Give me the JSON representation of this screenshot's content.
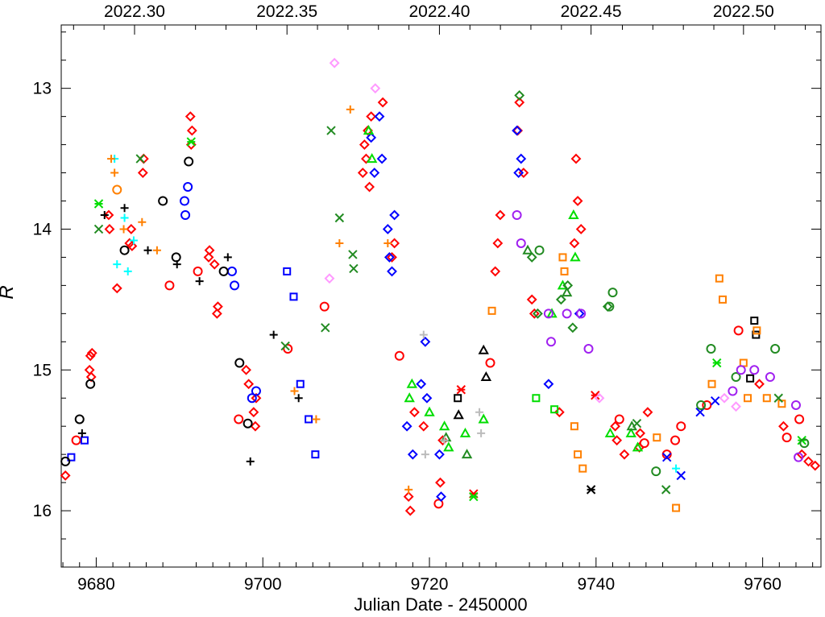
{
  "chart_data": {
    "type": "scatter",
    "xlabel": "Julian Date - 2450000",
    "ylabel": "R",
    "xlim": [
      9675.8,
      9767.0
    ],
    "ylim": [
      16.4,
      12.55
    ],
    "y_inverted": true,
    "x_ticks": [
      9680,
      9700,
      9720,
      9740,
      9760
    ],
    "y_ticks": [
      13,
      14,
      15,
      16
    ],
    "top_axis_ticks": [
      {
        "x": 9684.6,
        "label": "2022.30"
      },
      {
        "x": 9702.9,
        "label": "2022.35"
      },
      {
        "x": 9721.2,
        "label": "2022.40"
      },
      {
        "x": 9739.4,
        "label": "2022.45"
      },
      {
        "x": 9757.7,
        "label": "2022.50"
      }
    ],
    "grid": false,
    "series": [
      {
        "color": "#ff0000",
        "marker": "diamond",
        "points": [
          [
            9676.3,
            15.75
          ],
          [
            9679.2,
            15.0
          ],
          [
            9679.3,
            14.9
          ],
          [
            9679.4,
            15.05
          ],
          [
            9679.5,
            14.88
          ],
          [
            9681.5,
            13.9
          ],
          [
            9681.6,
            14.0
          ],
          [
            9682.5,
            14.42
          ],
          [
            9684.0,
            14.1
          ],
          [
            9684.2,
            14.0
          ],
          [
            9684.3,
            14.12
          ],
          [
            9685.6,
            13.6
          ],
          [
            9685.7,
            13.5
          ],
          [
            9691.3,
            13.2
          ],
          [
            9691.4,
            13.4
          ],
          [
            9691.5,
            13.3
          ],
          [
            9693.5,
            14.2
          ],
          [
            9693.6,
            14.15
          ],
          [
            9694.2,
            14.25
          ],
          [
            9694.5,
            14.6
          ],
          [
            9694.6,
            14.55
          ],
          [
            9698.0,
            15.0
          ],
          [
            9698.3,
            15.1
          ],
          [
            9698.9,
            15.3
          ],
          [
            9699.1,
            15.4
          ],
          [
            9699.2,
            15.2
          ],
          [
            9712.0,
            13.6
          ],
          [
            9712.2,
            13.4
          ],
          [
            9712.4,
            13.5
          ],
          [
            9712.6,
            13.3
          ],
          [
            9712.8,
            13.7
          ],
          [
            9713.0,
            13.2
          ],
          [
            9714.4,
            13.1
          ],
          [
            9715.5,
            14.2
          ],
          [
            9715.8,
            14.1
          ],
          [
            9717.5,
            15.9
          ],
          [
            9717.7,
            16.0
          ],
          [
            9718.2,
            15.3
          ],
          [
            9719.3,
            15.4
          ],
          [
            9721.3,
            15.8
          ],
          [
            9721.6,
            15.5
          ],
          [
            9727.9,
            14.3
          ],
          [
            9728.2,
            14.1
          ],
          [
            9728.5,
            13.9
          ],
          [
            9730.6,
            13.3
          ],
          [
            9730.8,
            13.1
          ],
          [
            9731.3,
            13.6
          ],
          [
            9732.3,
            14.5
          ],
          [
            9732.6,
            14.6
          ],
          [
            9735.6,
            15.3
          ],
          [
            9737.4,
            14.1
          ],
          [
            9737.6,
            13.5
          ],
          [
            9737.8,
            13.8
          ],
          [
            9738.2,
            14.0
          ],
          [
            9742.3,
            15.4
          ],
          [
            9742.5,
            15.5
          ],
          [
            9743.4,
            15.6
          ],
          [
            9745.2,
            15.55
          ],
          [
            9745.3,
            15.45
          ],
          [
            9746.2,
            15.3
          ],
          [
            9759.6,
            15.1
          ],
          [
            9762.5,
            15.4
          ],
          [
            9764.7,
            15.6
          ],
          [
            9765.5,
            15.65
          ],
          [
            9766.3,
            15.68
          ]
        ]
      },
      {
        "color": "#ff0000",
        "marker": "circle",
        "points": [
          [
            9677.6,
            15.5
          ],
          [
            9688.8,
            14.4
          ],
          [
            9692.2,
            14.3
          ],
          [
            9697.1,
            15.35
          ],
          [
            9703.0,
            14.85
          ],
          [
            9707.4,
            14.55
          ],
          [
            9716.4,
            14.9
          ],
          [
            9721.1,
            15.95
          ],
          [
            9727.3,
            14.95
          ],
          [
            9742.8,
            15.35
          ],
          [
            9745.8,
            15.52
          ],
          [
            9748.5,
            15.6
          ],
          [
            9749.5,
            15.5
          ],
          [
            9750.2,
            15.4
          ],
          [
            9753.3,
            15.25
          ],
          [
            9757.1,
            14.72
          ],
          [
            9762.9,
            15.48
          ],
          [
            9764.4,
            15.35
          ]
        ]
      },
      {
        "color": "#ff0000",
        "marker": "asterisk",
        "points": [
          [
            9723.8,
            15.14
          ],
          [
            9725.3,
            15.88
          ],
          [
            9739.9,
            15.18
          ]
        ]
      },
      {
        "color": "#0000ff",
        "marker": "diamond",
        "points": [
          [
            9713.0,
            13.35
          ],
          [
            9713.4,
            13.6
          ],
          [
            9714.0,
            13.2
          ],
          [
            9714.3,
            13.5
          ],
          [
            9715.0,
            14.0
          ],
          [
            9715.2,
            14.2
          ],
          [
            9715.5,
            14.3
          ],
          [
            9715.8,
            13.9
          ],
          [
            9717.3,
            15.4
          ],
          [
            9718.0,
            15.6
          ],
          [
            9719.0,
            15.1
          ],
          [
            9719.5,
            14.8
          ],
          [
            9719.7,
            15.2
          ],
          [
            9721.2,
            15.6
          ],
          [
            9721.4,
            15.9
          ],
          [
            9730.5,
            13.3
          ],
          [
            9730.7,
            13.6
          ],
          [
            9731.0,
            13.5
          ],
          [
            9734.3,
            15.1
          ],
          [
            9738.0,
            14.6
          ]
        ]
      },
      {
        "color": "#0000ff",
        "marker": "circle",
        "points": [
          [
            9690.6,
            13.8
          ],
          [
            9690.7,
            13.9
          ],
          [
            9691.0,
            13.7
          ],
          [
            9696.3,
            14.3
          ],
          [
            9696.6,
            14.4
          ],
          [
            9698.7,
            15.2
          ],
          [
            9699.2,
            15.15
          ]
        ]
      },
      {
        "color": "#0000ff",
        "marker": "square",
        "points": [
          [
            9677.0,
            15.62
          ],
          [
            9678.6,
            15.5
          ],
          [
            9702.9,
            14.3
          ],
          [
            9703.7,
            14.48
          ],
          [
            9704.5,
            15.1
          ],
          [
            9705.5,
            15.35
          ],
          [
            9706.3,
            15.6
          ]
        ]
      },
      {
        "color": "#0000ff",
        "marker": "x",
        "points": [
          [
            9748.5,
            15.62
          ],
          [
            9750.2,
            15.75
          ],
          [
            9752.5,
            15.3
          ],
          [
            9754.3,
            15.22
          ]
        ]
      },
      {
        "color": "#000000",
        "marker": "circle",
        "points": [
          [
            9676.3,
            15.65
          ],
          [
            9678.0,
            15.35
          ],
          [
            9679.3,
            15.1
          ],
          [
            9683.4,
            14.15
          ],
          [
            9688.0,
            13.8
          ],
          [
            9689.6,
            14.2
          ],
          [
            9691.1,
            13.52
          ],
          [
            9695.3,
            14.3
          ],
          [
            9697.2,
            14.95
          ],
          [
            9698.2,
            15.38
          ]
        ]
      },
      {
        "color": "#000000",
        "marker": "plus",
        "points": [
          [
            9678.3,
            15.45
          ],
          [
            9681.0,
            13.9
          ],
          [
            9683.4,
            13.85
          ],
          [
            9686.2,
            14.15
          ],
          [
            9689.7,
            14.25
          ],
          [
            9692.4,
            14.37
          ],
          [
            9695.8,
            14.2
          ],
          [
            9698.5,
            15.65
          ],
          [
            9701.3,
            14.75
          ],
          [
            9704.3,
            15.2
          ]
        ]
      },
      {
        "color": "#000000",
        "marker": "triangle",
        "points": [
          [
            9723.5,
            15.32
          ],
          [
            9726.5,
            14.86
          ],
          [
            9726.8,
            15.05
          ]
        ]
      },
      {
        "color": "#000000",
        "marker": "square",
        "points": [
          [
            9723.4,
            15.2
          ],
          [
            9758.5,
            15.06
          ],
          [
            9759.0,
            14.65
          ],
          [
            9759.2,
            14.75
          ]
        ]
      },
      {
        "color": "#000000",
        "marker": "asterisk",
        "points": [
          [
            9739.4,
            15.85
          ]
        ]
      },
      {
        "color": "#00ffff",
        "marker": "plus",
        "points": [
          [
            9682.2,
            13.5
          ],
          [
            9682.5,
            14.25
          ],
          [
            9683.4,
            13.92
          ],
          [
            9683.8,
            14.3
          ],
          [
            9684.5,
            14.08
          ],
          [
            9749.6,
            15.7
          ]
        ]
      },
      {
        "color": "#ff8000",
        "marker": "plus",
        "points": [
          [
            9681.8,
            13.5
          ],
          [
            9682.2,
            13.6
          ],
          [
            9683.3,
            14.0
          ],
          [
            9685.5,
            13.95
          ],
          [
            9687.3,
            14.15
          ],
          [
            9703.8,
            15.15
          ],
          [
            9706.4,
            15.35
          ],
          [
            9709.2,
            14.1
          ],
          [
            9710.5,
            13.15
          ],
          [
            9715.0,
            14.1
          ],
          [
            9717.5,
            15.85
          ]
        ]
      },
      {
        "color": "#ff8000",
        "marker": "circle",
        "points": [
          [
            9682.5,
            13.72
          ]
        ]
      },
      {
        "color": "#ff8000",
        "marker": "square",
        "points": [
          [
            9727.5,
            14.58
          ],
          [
            9736.0,
            14.2
          ],
          [
            9736.2,
            14.3
          ],
          [
            9737.4,
            15.4
          ],
          [
            9737.8,
            15.6
          ],
          [
            9738.4,
            15.7
          ],
          [
            9747.3,
            15.48
          ],
          [
            9749.6,
            15.98
          ],
          [
            9753.9,
            15.1
          ],
          [
            9754.8,
            14.35
          ],
          [
            9755.2,
            14.5
          ],
          [
            9757.7,
            14.95
          ],
          [
            9758.2,
            15.2
          ],
          [
            9759.3,
            14.72
          ],
          [
            9760.5,
            15.2
          ],
          [
            9762.3,
            15.24
          ]
        ]
      },
      {
        "color": "#00dd00",
        "marker": "triangle",
        "points": [
          [
            9712.7,
            13.3
          ],
          [
            9713.1,
            13.5
          ],
          [
            9717.6,
            15.2
          ],
          [
            9717.9,
            15.1
          ],
          [
            9720.0,
            15.3
          ],
          [
            9721.8,
            15.4
          ],
          [
            9722.3,
            15.55
          ],
          [
            9724.3,
            15.45
          ],
          [
            9726.5,
            15.35
          ],
          [
            9734.7,
            14.6
          ],
          [
            9736.0,
            14.4
          ],
          [
            9737.3,
            13.9
          ],
          [
            9737.5,
            14.2
          ],
          [
            9741.7,
            15.45
          ],
          [
            9744.2,
            15.45
          ],
          [
            9745.0,
            15.55
          ]
        ]
      },
      {
        "color": "#00dd00",
        "marker": "square",
        "points": [
          [
            9732.8,
            15.2
          ],
          [
            9735.0,
            15.28
          ]
        ]
      },
      {
        "color": "#00dd00",
        "marker": "asterisk",
        "points": [
          [
            9680.3,
            13.82
          ],
          [
            9691.4,
            13.38
          ],
          [
            9725.3,
            15.9
          ],
          [
            9754.5,
            14.95
          ],
          [
            9764.7,
            15.5
          ]
        ]
      },
      {
        "color": "#228b22",
        "marker": "diamond",
        "points": [
          [
            9730.8,
            13.05
          ],
          [
            9732.3,
            14.2
          ],
          [
            9733.0,
            14.6
          ],
          [
            9735.8,
            14.5
          ],
          [
            9736.6,
            14.4
          ],
          [
            9737.2,
            14.7
          ],
          [
            9741.4,
            14.55
          ]
        ]
      },
      {
        "color": "#228b22",
        "marker": "circle",
        "points": [
          [
            9733.2,
            14.15
          ],
          [
            9741.6,
            14.55
          ],
          [
            9742.0,
            14.45
          ],
          [
            9747.2,
            15.72
          ],
          [
            9752.6,
            15.25
          ],
          [
            9753.8,
            14.85
          ],
          [
            9756.8,
            15.05
          ],
          [
            9761.5,
            14.85
          ],
          [
            9765.0,
            15.52
          ]
        ]
      },
      {
        "color": "#228b22",
        "marker": "triangle",
        "points": [
          [
            9722.0,
            15.48
          ],
          [
            9724.5,
            15.6
          ],
          [
            9731.8,
            14.15
          ],
          [
            9736.5,
            14.45
          ],
          [
            9744.3,
            15.4
          ]
        ]
      },
      {
        "color": "#228b22",
        "marker": "x",
        "points": [
          [
            9680.3,
            14.0
          ],
          [
            9685.3,
            13.5
          ],
          [
            9702.7,
            14.83
          ],
          [
            9707.5,
            14.7
          ],
          [
            9708.2,
            13.3
          ],
          [
            9709.2,
            13.92
          ],
          [
            9710.8,
            14.18
          ],
          [
            9710.9,
            14.28
          ],
          [
            9744.9,
            15.38
          ],
          [
            9748.4,
            15.85
          ],
          [
            9761.9,
            15.2
          ]
        ]
      },
      {
        "color": "#a020f0",
        "marker": "circle",
        "points": [
          [
            9730.5,
            13.9
          ],
          [
            9731.0,
            14.1
          ],
          [
            9734.3,
            14.6
          ],
          [
            9734.6,
            14.8
          ],
          [
            9736.5,
            14.6
          ],
          [
            9738.2,
            14.6
          ],
          [
            9739.1,
            14.85
          ],
          [
            9756.4,
            15.15
          ],
          [
            9757.4,
            15.0
          ],
          [
            9759.0,
            15.0
          ],
          [
            9760.9,
            15.05
          ],
          [
            9764.0,
            15.25
          ],
          [
            9764.3,
            15.62
          ]
        ]
      },
      {
        "color": "#ff99ff",
        "marker": "diamond",
        "points": [
          [
            9708.6,
            12.82
          ],
          [
            9708.0,
            14.35
          ],
          [
            9713.5,
            13.0
          ],
          [
            9740.4,
            15.2
          ],
          [
            9755.4,
            15.2
          ],
          [
            9756.8,
            15.26
          ]
        ]
      },
      {
        "color": "#bbbbbb",
        "marker": "plus",
        "points": [
          [
            9719.3,
            14.75
          ],
          [
            9719.5,
            15.6
          ],
          [
            9721.8,
            15.5
          ],
          [
            9726.0,
            15.3
          ],
          [
            9726.2,
            15.45
          ]
        ]
      }
    ]
  }
}
